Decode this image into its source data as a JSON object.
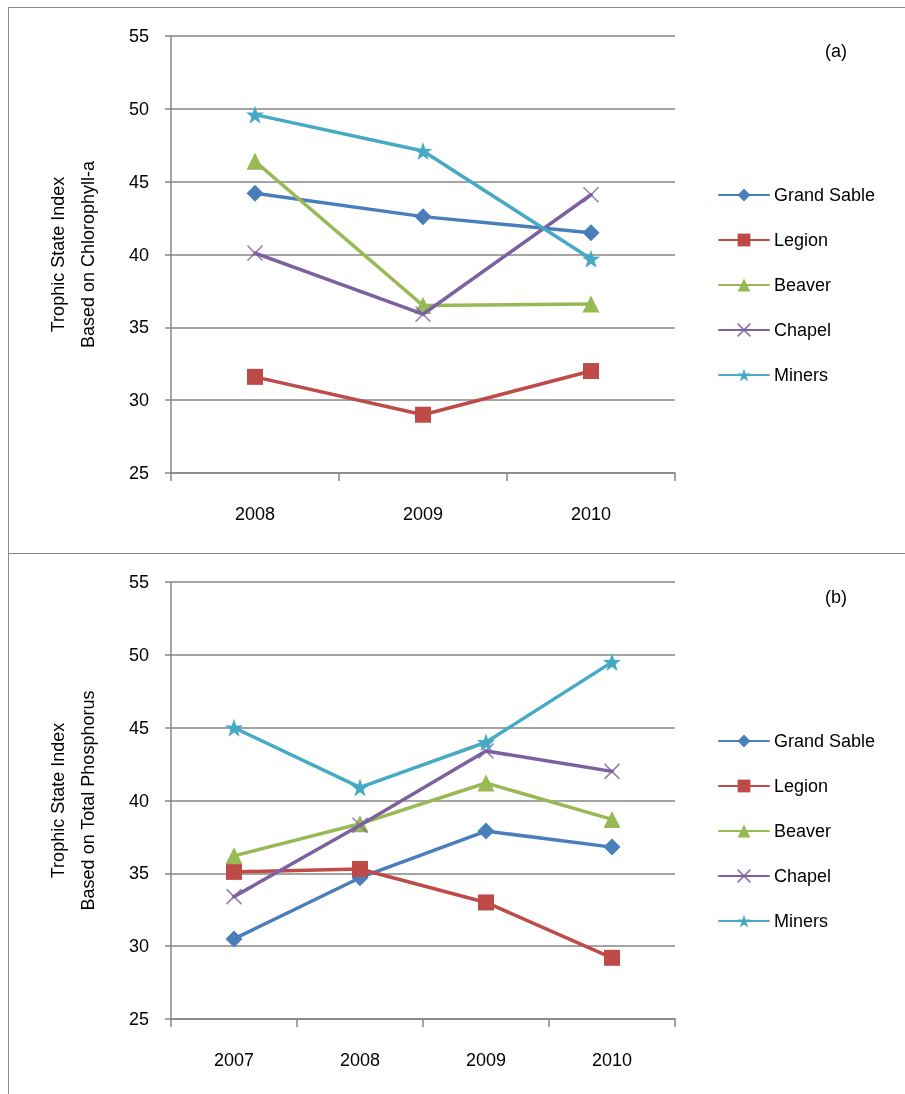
{
  "chart_data": [
    {
      "type": "line",
      "categories": [
        "2008",
        "2009",
        "2010"
      ],
      "ylabel": "Trophic State Index\nBased on Chlorophyll-a",
      "ylim": [
        25,
        55
      ],
      "yticks": [
        25,
        30,
        35,
        40,
        45,
        50,
        55
      ],
      "grid": "y",
      "legend": "right",
      "line_style": "solid",
      "annotations": [
        "(a)"
      ],
      "series": [
        {
          "name": "Grand Sable",
          "color": "#4a7ebb",
          "marker": "diamond",
          "values": [
            44.2,
            42.6,
            41.5
          ]
        },
        {
          "name": "Legion",
          "color": "#be4b48",
          "marker": "square",
          "values": [
            31.6,
            29.0,
            32.0
          ]
        },
        {
          "name": "Beaver",
          "color": "#98b954",
          "marker": "triangle",
          "values": [
            46.4,
            36.5,
            36.6
          ]
        },
        {
          "name": "Chapel",
          "color": "#7d60a0",
          "marker": "cross",
          "values": [
            40.1,
            35.9,
            44.1
          ]
        },
        {
          "name": "Miners",
          "color": "#46aac5",
          "marker": "star",
          "values": [
            49.6,
            47.1,
            39.7
          ]
        }
      ]
    },
    {
      "type": "line",
      "categories": [
        "2007",
        "2008",
        "2009",
        "2010"
      ],
      "ylabel": "Trophic State Index\nBased on Total Phosphorus",
      "ylim": [
        25,
        55
      ],
      "yticks": [
        25,
        30,
        35,
        40,
        45,
        50,
        55
      ],
      "grid": "y",
      "legend": "right",
      "line_style": "solid",
      "annotations": [
        "(b)"
      ],
      "series": [
        {
          "name": "Grand Sable",
          "color": "#4a7ebb",
          "marker": "diamond",
          "values": [
            30.5,
            34.7,
            37.9,
            36.8
          ]
        },
        {
          "name": "Legion",
          "color": "#be4b48",
          "marker": "square",
          "values": [
            35.1,
            35.3,
            33.0,
            29.2
          ]
        },
        {
          "name": "Beaver",
          "color": "#98b954",
          "marker": "triangle",
          "values": [
            36.2,
            38.4,
            41.2,
            38.7
          ]
        },
        {
          "name": "Chapel",
          "color": "#7d60a0",
          "marker": "cross",
          "values": [
            33.4,
            38.3,
            43.4,
            42.0
          ]
        },
        {
          "name": "Miners",
          "color": "#46aac5",
          "marker": "star",
          "values": [
            45.0,
            40.9,
            44.0,
            49.5
          ]
        }
      ]
    }
  ]
}
